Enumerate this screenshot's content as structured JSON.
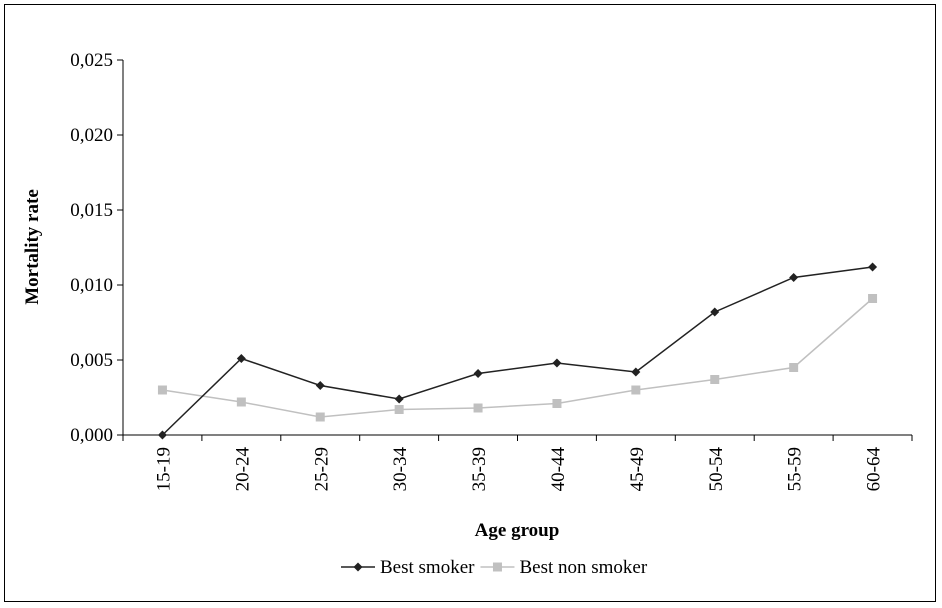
{
  "chart_data": {
    "type": "line",
    "categories": [
      "15-19",
      "20-24",
      "25-29",
      "30-34",
      "35-39",
      "40-44",
      "45-49",
      "50-54",
      "55-59",
      "60-64"
    ],
    "series": [
      {
        "name": "Best smoker",
        "color": "#222222",
        "marker": "diamond",
        "values": [
          0.0,
          0.0051,
          0.0033,
          0.0024,
          0.0041,
          0.0048,
          0.0042,
          0.0082,
          0.0105,
          0.0112
        ]
      },
      {
        "name": "Best non smoker",
        "color": "#c0c0c0",
        "marker": "square",
        "values": [
          0.003,
          0.0022,
          0.0012,
          0.0017,
          0.0018,
          0.0021,
          0.003,
          0.0037,
          0.0045,
          0.0091
        ]
      }
    ],
    "xlabel": "Age group",
    "ylabel": "Mortality rate",
    "ylim": [
      0,
      0.025
    ],
    "yticks": [
      0,
      0.005,
      0.01,
      0.015,
      0.02,
      0.025
    ],
    "ytick_labels": [
      "0,000",
      "0,005",
      "0,010",
      "0,015",
      "0,020",
      "0,025"
    ],
    "grid": false,
    "legend_position": "bottom"
  }
}
